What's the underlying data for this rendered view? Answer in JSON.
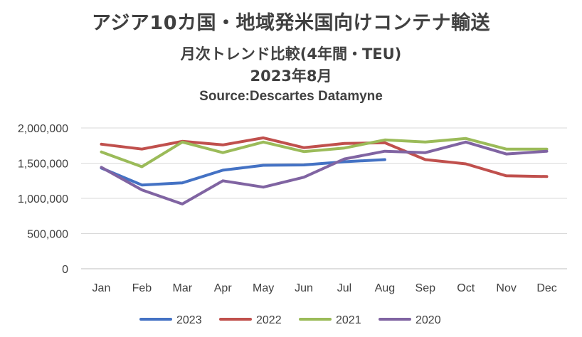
{
  "chart_data": {
    "type": "line",
    "title": "アジア10カ国・地域発米国向けコンテナ輸送",
    "subtitle": "月次トレンド比較(4年間・TEU)",
    "period": "2023年8月",
    "source": "Source:Descartes Datamyne",
    "xlabel": "",
    "ylabel": "",
    "categories": [
      "Jan",
      "Feb",
      "Mar",
      "Apr",
      "May",
      "Jun",
      "Jul",
      "Aug",
      "Sep",
      "Oct",
      "Nov",
      "Dec"
    ],
    "ylim": [
      0,
      2000000
    ],
    "yticks": [
      0,
      500000,
      1000000,
      1500000,
      2000000
    ],
    "ytick_labels": [
      "0",
      "500,000",
      "1,000,000",
      "1,500,000",
      "2,000,000"
    ],
    "grid": true,
    "legend_position": "bottom",
    "series": [
      {
        "name": "2023",
        "color": "#4472C4",
        "values": [
          1430000,
          1190000,
          1220000,
          1400000,
          1470000,
          1475000,
          1520000,
          1550000,
          null,
          null,
          null,
          null
        ]
      },
      {
        "name": "2022",
        "color": "#C0504D",
        "values": [
          1770000,
          1700000,
          1810000,
          1760000,
          1860000,
          1720000,
          1780000,
          1790000,
          1550000,
          1490000,
          1320000,
          1310000
        ]
      },
      {
        "name": "2021",
        "color": "#9BBB59",
        "values": [
          1660000,
          1450000,
          1800000,
          1650000,
          1800000,
          1665000,
          1715000,
          1830000,
          1800000,
          1850000,
          1700000,
          1700000
        ]
      },
      {
        "name": "2020",
        "color": "#8064A2",
        "values": [
          1440000,
          1120000,
          920000,
          1250000,
          1160000,
          1300000,
          1560000,
          1670000,
          1650000,
          1800000,
          1630000,
          1670000
        ]
      }
    ]
  },
  "colors": {
    "gridline": "#D9D9D9",
    "axis_line": "#BFBFBF",
    "text": "#404040"
  }
}
